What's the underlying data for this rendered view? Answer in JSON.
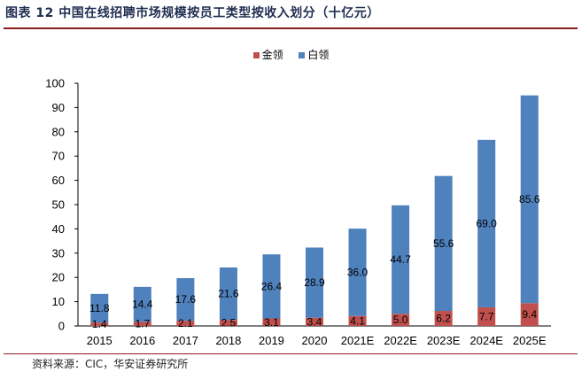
{
  "header": {
    "title": "图表 12 中国在线招聘市场规模按员工类型按收入划分（十亿元）"
  },
  "source": "资料来源：CIC，华安证券研究所",
  "colors": {
    "gold": "#c0504d",
    "white": "#4f81bd",
    "title": "#1f2d50",
    "rule": "#8a1c1c"
  },
  "chart_data": {
    "type": "bar",
    "stacked": true,
    "categories": [
      "2015",
      "2016",
      "2017",
      "2018",
      "2019",
      "2020",
      "2021E",
      "2022E",
      "2023E",
      "2024E",
      "2025E"
    ],
    "series": [
      {
        "name": "金领",
        "color": "#c0504d",
        "values": [
          1.4,
          1.7,
          2.1,
          2.5,
          3.1,
          3.4,
          4.1,
          5.0,
          6.2,
          7.7,
          9.4
        ]
      },
      {
        "name": "白领",
        "color": "#4f81bd",
        "values": [
          11.8,
          14.4,
          17.6,
          21.6,
          26.4,
          28.9,
          36.0,
          44.7,
          55.6,
          69.0,
          85.6
        ]
      }
    ],
    "ylim": [
      0,
      100
    ],
    "yticks": [
      0,
      10,
      20,
      30,
      40,
      50,
      60,
      70,
      80,
      90,
      100
    ],
    "legend": "top-center",
    "grid": false
  }
}
